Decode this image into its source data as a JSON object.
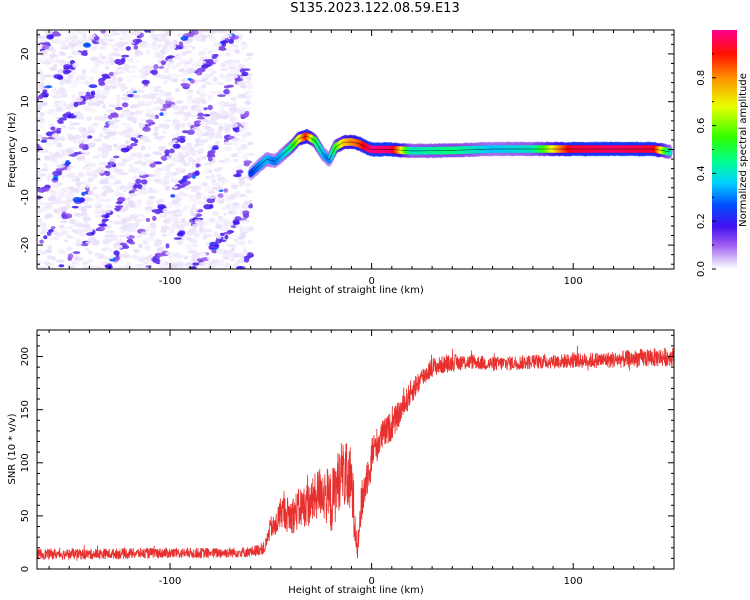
{
  "title": "S135.2023.122.08.59.E13",
  "colors": {
    "axes": "#000000",
    "snr_line": "#e8302e",
    "ridge": "#5a00e0"
  },
  "colorbar": {
    "label": "Normalized spectral amplitude",
    "ticks": [
      "0.0",
      "0.2",
      "0.4",
      "0.6",
      "0.8"
    ],
    "tick_values": [
      0.0,
      0.2,
      0.4,
      0.6,
      0.8
    ],
    "range": [
      0,
      1
    ],
    "colormap": [
      "#ffffff",
      "#d9c8f5",
      "#8c4ee8",
      "#3a10f0",
      "#0040ff",
      "#00c8ff",
      "#00ff80",
      "#40ff00",
      "#ffff00",
      "#ff8000",
      "#ff0000",
      "#ff0080"
    ]
  },
  "chart_data": [
    {
      "type": "heatmap",
      "xlabel": "Height of straight line (km)",
      "ylabel": "Frequency (Hz)",
      "xlim": [
        -166,
        150
      ],
      "ylim": [
        -25,
        25
      ],
      "xticks": [
        "-100",
        "0",
        "100"
      ],
      "xtick_values": [
        -100,
        0,
        100
      ],
      "yticks": [
        "-20",
        "-10",
        "0",
        "10",
        "20"
      ],
      "ytick_values": [
        -20,
        -10,
        0,
        10,
        20
      ],
      "noise_region_x": [
        -166,
        -60
      ],
      "noise_stripes": {
        "slope_hz_per_km": 0.45,
        "spacing_hz": 10
      },
      "ridge": {
        "x": [
          -60,
          -56,
          -52,
          -48,
          -44,
          -40,
          -36,
          -32,
          -28,
          -24,
          -21,
          -18,
          -14,
          -10,
          -6,
          -2,
          0,
          10,
          20,
          40,
          60,
          80,
          100,
          120,
          140,
          148
        ],
        "y": [
          -5,
          -3.5,
          -2,
          -2.5,
          -1,
          0.5,
          2.3,
          2.8,
          1.8,
          -1,
          -2.2,
          0.5,
          1.5,
          1.6,
          1.2,
          0.3,
          0,
          0,
          -0.3,
          -0.2,
          0.1,
          0.1,
          0.1,
          0.1,
          0.1,
          -0.5
        ],
        "amplitude": [
          0.35,
          0.4,
          0.45,
          0.4,
          0.45,
          0.55,
          0.7,
          0.9,
          0.6,
          0.45,
          0.4,
          0.6,
          0.75,
          0.8,
          0.85,
          0.95,
          1.0,
          0.98,
          0.5,
          0.55,
          0.45,
          0.5,
          0.95,
          0.98,
          0.95,
          0.5
        ]
      }
    },
    {
      "type": "line",
      "xlabel": "Height of straight line (km)",
      "ylabel": "SNR (10 * v/v)",
      "xlim": [
        -166,
        150
      ],
      "ylim": [
        0,
        225
      ],
      "xticks": [
        "-100",
        "0",
        "100"
      ],
      "xtick_values": [
        -100,
        0,
        100
      ],
      "yticks": [
        "0",
        "50",
        "100",
        "150",
        "200"
      ],
      "ytick_values": [
        0,
        50,
        100,
        150,
        200
      ],
      "series": [
        {
          "x": [
            -166,
            -140,
            -110,
            -80,
            -60,
            -53,
            -50,
            -48,
            -45,
            -40,
            -35,
            -30,
            -25,
            -20,
            -15,
            -10,
            -8,
            -7,
            -5,
            0,
            5,
            10,
            15,
            20,
            25,
            30,
            40,
            50,
            60,
            80,
            100,
            120,
            140,
            150
          ],
          "y": [
            14,
            14,
            15,
            15,
            16,
            20,
            40,
            38,
            55,
            50,
            58,
            62,
            75,
            62,
            92,
            80,
            40,
            20,
            62,
            108,
            125,
            135,
            150,
            168,
            180,
            190,
            194,
            195,
            193,
            195,
            196,
            197,
            199,
            200
          ],
          "noise_amplitude": [
            5,
            5,
            5,
            5,
            5,
            6,
            10,
            12,
            15,
            18,
            20,
            22,
            25,
            30,
            30,
            35,
            20,
            10,
            20,
            18,
            15,
            14,
            12,
            12,
            10,
            9,
            8,
            7,
            7,
            7,
            7,
            8,
            9,
            9
          ]
        }
      ]
    }
  ]
}
